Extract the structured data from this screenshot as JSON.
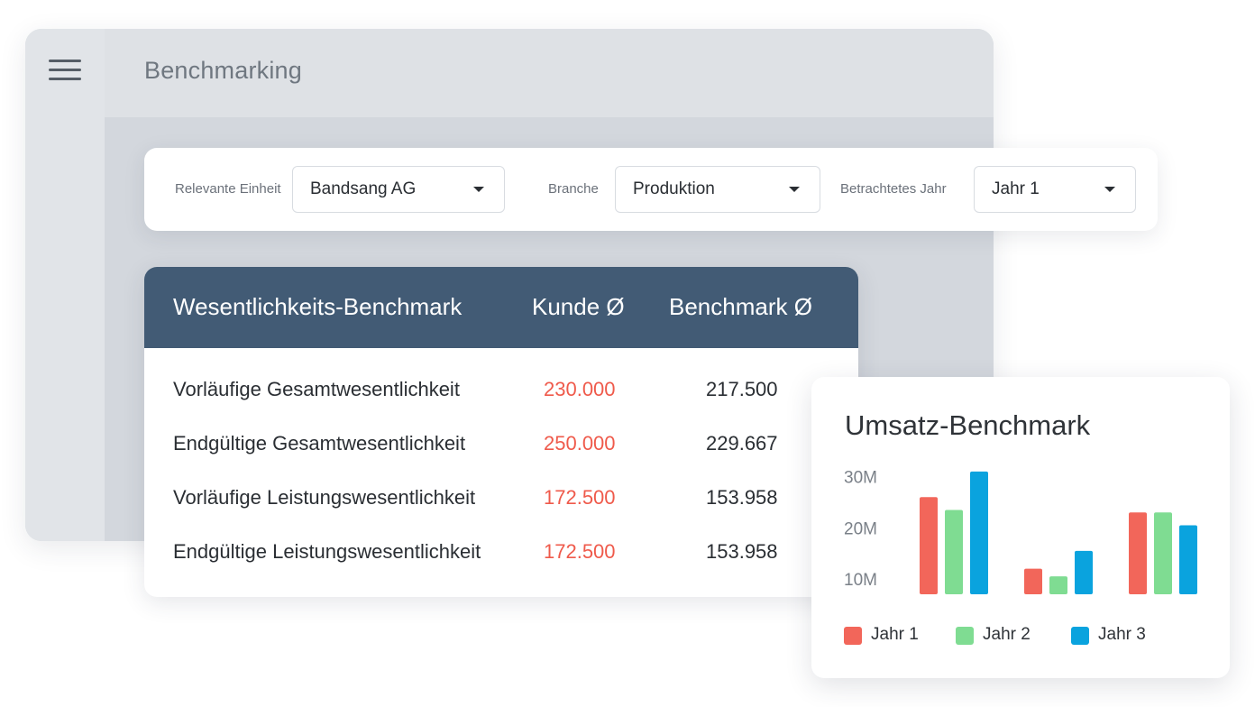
{
  "app": {
    "title": "Benchmarking"
  },
  "filters": {
    "unit": {
      "label": "Relevante Einheit",
      "value": "Bandsang AG"
    },
    "industry": {
      "label": "Branche",
      "value": "Produktion"
    },
    "year": {
      "label": "Betrachtetes Jahr",
      "value": "Jahr 1"
    }
  },
  "table": {
    "headers": [
      "Wesentlichkeits-Benchmark",
      "Kunde Ø",
      "Benchmark Ø"
    ],
    "rows": [
      [
        "Vorläufige Gesamtwesentlichkeit",
        "230.000",
        "217.500"
      ],
      [
        "Endgültige Gesamtwesentlichkeit",
        "250.000",
        "229.667"
      ],
      [
        "Vorläufige Leistungswesentlichkeit",
        "172.500",
        "153.958"
      ],
      [
        "Endgültige Leistungswesentlichkeit",
        "172.500",
        "153.958"
      ]
    ],
    "colors": {
      "header_bg": "#425b75",
      "customer_value": "#ef5a4b"
    }
  },
  "chart_data": {
    "type": "bar",
    "title": "Umsatz-Benchmark",
    "xlabel": "",
    "ylabel": "",
    "categories": [
      "",
      "",
      ""
    ],
    "yticks": [
      "30M",
      "20M",
      "10M"
    ],
    "ytick_values": [
      30,
      20,
      10
    ],
    "unit": "M",
    "series": [
      {
        "name": "Jahr 1",
        "color": "#f2665a",
        "values": [
          26,
          12,
          23
        ]
      },
      {
        "name": "Jahr 2",
        "color": "#7fdc92",
        "values": [
          23.5,
          10.5,
          23
        ]
      },
      {
        "name": "Jahr 3",
        "color": "#0aa3de",
        "values": [
          31,
          15.5,
          20.5
        ]
      }
    ],
    "grid": false,
    "legend": "bottom"
  }
}
